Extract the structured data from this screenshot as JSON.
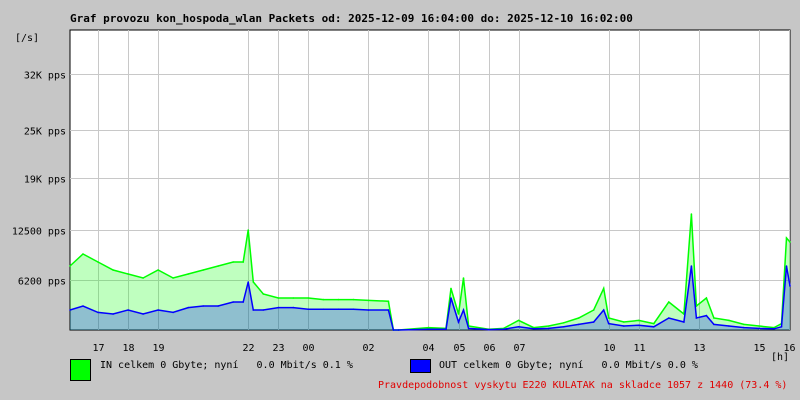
{
  "chart_data": {
    "type": "area",
    "title": "Graf provozu kon_hospoda_wlan Packets od: 2025-12-09 16:04:00 do: 2025-12-10 16:02:00",
    "ylabel": "[/s]",
    "xlabel": "[h]",
    "x_start": "2025-12-09 16:04",
    "x_end": "2025-12-10 16:02",
    "grid": true,
    "ylim": [
      0,
      37500
    ],
    "y_ticks": [
      {
        "value": 6200,
        "label": "6200 pps"
      },
      {
        "value": 12500,
        "label": "12500 pps"
      },
      {
        "value": 19000,
        "label": "19K pps"
      },
      {
        "value": 25000,
        "label": "25K pps"
      },
      {
        "value": 32000,
        "label": "32K pps"
      }
    ],
    "x_ticks": [
      {
        "time": "2025-12-09 17:00",
        "label": "17"
      },
      {
        "time": "2025-12-09 18:00",
        "label": "18"
      },
      {
        "time": "2025-12-09 19:00",
        "label": "19"
      },
      {
        "time": "2025-12-09 22:00",
        "label": "22"
      },
      {
        "time": "2025-12-09 23:00",
        "label": "23"
      },
      {
        "time": "2025-12-10 00:00",
        "label": "00"
      },
      {
        "time": "2025-12-10 02:00",
        "label": "02"
      },
      {
        "time": "2025-12-10 04:00",
        "label": "04"
      },
      {
        "time": "2025-12-10 05:00",
        "label": "05"
      },
      {
        "time": "2025-12-10 06:00",
        "label": "06"
      },
      {
        "time": "2025-12-10 07:00",
        "label": "07"
      },
      {
        "time": "2025-12-10 10:00",
        "label": "10"
      },
      {
        "time": "2025-12-10 11:00",
        "label": "11"
      },
      {
        "time": "2025-12-10 13:00",
        "label": "13"
      },
      {
        "time": "2025-12-10 15:00",
        "label": "15"
      },
      {
        "time": "2025-12-10 16:00",
        "label": "16"
      }
    ],
    "series": [
      {
        "name": "IN",
        "color": "#00ff00",
        "points": [
          [
            "2025-12-09 16:04",
            8000
          ],
          [
            "2025-12-09 16:30",
            9500
          ],
          [
            "2025-12-09 17:00",
            8500
          ],
          [
            "2025-12-09 17:30",
            7500
          ],
          [
            "2025-12-09 18:00",
            7000
          ],
          [
            "2025-12-09 18:30",
            6500
          ],
          [
            "2025-12-09 19:00",
            7500
          ],
          [
            "2025-12-09 19:30",
            6500
          ],
          [
            "2025-12-09 20:00",
            7000
          ],
          [
            "2025-12-09 20:30",
            7500
          ],
          [
            "2025-12-09 21:00",
            8000
          ],
          [
            "2025-12-09 21:30",
            8500
          ],
          [
            "2025-12-09 21:50",
            8500
          ],
          [
            "2025-12-09 22:00",
            12500
          ],
          [
            "2025-12-09 22:10",
            6000
          ],
          [
            "2025-12-09 22:30",
            4500
          ],
          [
            "2025-12-09 23:00",
            4000
          ],
          [
            "2025-12-09 23:30",
            4000
          ],
          [
            "2025-12-10 00:00",
            4000
          ],
          [
            "2025-12-10 00:30",
            3800
          ],
          [
            "2025-12-10 01:00",
            3800
          ],
          [
            "2025-12-10 01:30",
            3800
          ],
          [
            "2025-12-10 02:00",
            3700
          ],
          [
            "2025-12-10 02:40",
            3600
          ],
          [
            "2025-12-10 02:50",
            0
          ],
          [
            "2025-12-10 03:00",
            0
          ],
          [
            "2025-12-10 04:00",
            300
          ],
          [
            "2025-12-10 04:35",
            200
          ],
          [
            "2025-12-10 04:45",
            5200
          ],
          [
            "2025-12-10 05:00",
            2000
          ],
          [
            "2025-12-10 05:10",
            6500
          ],
          [
            "2025-12-10 05:20",
            500
          ],
          [
            "2025-12-10 06:00",
            100
          ],
          [
            "2025-12-10 06:30",
            200
          ],
          [
            "2025-12-10 07:00",
            1200
          ],
          [
            "2025-12-10 07:30",
            300
          ],
          [
            "2025-12-10 08:00",
            500
          ],
          [
            "2025-12-10 08:30",
            900
          ],
          [
            "2025-12-10 09:00",
            1500
          ],
          [
            "2025-12-10 09:30",
            2500
          ],
          [
            "2025-12-10 09:50",
            5200
          ],
          [
            "2025-12-10 10:00",
            1500
          ],
          [
            "2025-12-10 10:30",
            1000
          ],
          [
            "2025-12-10 11:00",
            1200
          ],
          [
            "2025-12-10 11:30",
            800
          ],
          [
            "2025-12-10 12:00",
            3500
          ],
          [
            "2025-12-10 12:30",
            2000
          ],
          [
            "2025-12-10 12:45",
            14500
          ],
          [
            "2025-12-10 12:55",
            3000
          ],
          [
            "2025-12-10 13:15",
            4000
          ],
          [
            "2025-12-10 13:30",
            1500
          ],
          [
            "2025-12-10 14:00",
            1200
          ],
          [
            "2025-12-10 14:30",
            700
          ],
          [
            "2025-12-10 15:00",
            500
          ],
          [
            "2025-12-10 15:30",
            300
          ],
          [
            "2025-12-10 15:45",
            800
          ],
          [
            "2025-12-10 15:55",
            11500
          ],
          [
            "2025-12-10 16:02",
            11000
          ]
        ]
      },
      {
        "name": "OUT",
        "color": "#0000ff",
        "points": [
          [
            "2025-12-09 16:04",
            2500
          ],
          [
            "2025-12-09 16:30",
            3000
          ],
          [
            "2025-12-09 17:00",
            2200
          ],
          [
            "2025-12-09 17:30",
            2000
          ],
          [
            "2025-12-09 18:00",
            2500
          ],
          [
            "2025-12-09 18:30",
            2000
          ],
          [
            "2025-12-09 19:00",
            2500
          ],
          [
            "2025-12-09 19:30",
            2200
          ],
          [
            "2025-12-09 20:00",
            2800
          ],
          [
            "2025-12-09 20:30",
            3000
          ],
          [
            "2025-12-09 21:00",
            3000
          ],
          [
            "2025-12-09 21:30",
            3500
          ],
          [
            "2025-12-09 21:50",
            3500
          ],
          [
            "2025-12-09 22:00",
            6000
          ],
          [
            "2025-12-09 22:10",
            2500
          ],
          [
            "2025-12-09 22:30",
            2500
          ],
          [
            "2025-12-09 23:00",
            2800
          ],
          [
            "2025-12-09 23:30",
            2800
          ],
          [
            "2025-12-10 00:00",
            2600
          ],
          [
            "2025-12-10 00:30",
            2600
          ],
          [
            "2025-12-10 01:00",
            2600
          ],
          [
            "2025-12-10 01:30",
            2600
          ],
          [
            "2025-12-10 02:00",
            2500
          ],
          [
            "2025-12-10 02:40",
            2500
          ],
          [
            "2025-12-10 02:50",
            0
          ],
          [
            "2025-12-10 03:00",
            0
          ],
          [
            "2025-12-10 04:00",
            100
          ],
          [
            "2025-12-10 04:35",
            100
          ],
          [
            "2025-12-10 04:45",
            4000
          ],
          [
            "2025-12-10 05:00",
            1000
          ],
          [
            "2025-12-10 05:10",
            2500
          ],
          [
            "2025-12-10 05:20",
            200
          ],
          [
            "2025-12-10 06:00",
            50
          ],
          [
            "2025-12-10 06:30",
            100
          ],
          [
            "2025-12-10 07:00",
            400
          ],
          [
            "2025-12-10 07:30",
            150
          ],
          [
            "2025-12-10 08:00",
            200
          ],
          [
            "2025-12-10 08:30",
            400
          ],
          [
            "2025-12-10 09:00",
            700
          ],
          [
            "2025-12-10 09:30",
            1000
          ],
          [
            "2025-12-10 09:50",
            2500
          ],
          [
            "2025-12-10 10:00",
            800
          ],
          [
            "2025-12-10 10:30",
            500
          ],
          [
            "2025-12-10 11:00",
            600
          ],
          [
            "2025-12-10 11:30",
            400
          ],
          [
            "2025-12-10 12:00",
            1500
          ],
          [
            "2025-12-10 12:30",
            1000
          ],
          [
            "2025-12-10 12:45",
            8000
          ],
          [
            "2025-12-10 12:55",
            1500
          ],
          [
            "2025-12-10 13:15",
            1800
          ],
          [
            "2025-12-10 13:30",
            700
          ],
          [
            "2025-12-10 14:00",
            500
          ],
          [
            "2025-12-10 14:30",
            300
          ],
          [
            "2025-12-10 15:00",
            200
          ],
          [
            "2025-12-10 15:30",
            150
          ],
          [
            "2025-12-10 15:45",
            400
          ],
          [
            "2025-12-10 15:55",
            8000
          ],
          [
            "2025-12-10 16:02",
            5500
          ]
        ]
      }
    ]
  },
  "legend": {
    "in": {
      "text": "IN celkem 0 Gbyte; nyní   0.0 Mbit/s 0.1 %",
      "color": "#00ff00"
    },
    "out": {
      "text": "OUT celkem 0 Gbyte; nyní   0.0 Mbit/s 0.0 %",
      "color": "#0000ff"
    }
  },
  "footer": {
    "note": "Pravdepodobnost vyskytu E220 KULATAK na skladce 1057 z 1440 (73.4 %)",
    "color": "#e00000"
  }
}
